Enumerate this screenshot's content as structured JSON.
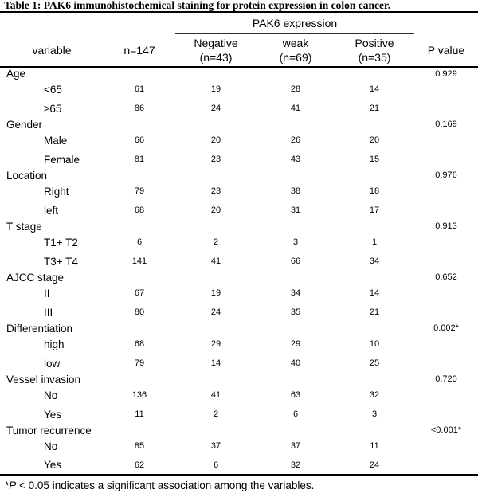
{
  "title": "Table 1: PAK6 immunohistochemical staining for protein expression in colon cancer.",
  "table": {
    "group_header": "PAK6 expression",
    "col_headers": {
      "variable": "variable",
      "n": "n=147",
      "negative_line1": "Negative",
      "negative_line2": "(n=43)",
      "weak_line1": "weak",
      "weak_line2": "(n=69)",
      "positive_line1": "Positive",
      "positive_line2": "(n=35)",
      "p": "P value"
    },
    "sections": [
      {
        "label": "Age",
        "p": "0.929",
        "rows": [
          {
            "label": "<65",
            "n": "61",
            "neg": "19",
            "weak": "28",
            "pos": "14"
          },
          {
            "label": "≥65",
            "n": "86",
            "neg": "24",
            "weak": "41",
            "pos": "21"
          }
        ]
      },
      {
        "label": "Gender",
        "p": "0.169",
        "rows": [
          {
            "label": "Male",
            "n": "66",
            "neg": "20",
            "weak": "26",
            "pos": "20"
          },
          {
            "label": "Female",
            "n": "81",
            "neg": "23",
            "weak": "43",
            "pos": "15"
          }
        ]
      },
      {
        "label": "Location",
        "p": "0.976",
        "rows": [
          {
            "label": "Right",
            "n": "79",
            "neg": "23",
            "weak": "38",
            "pos": "18"
          },
          {
            "label": "left",
            "n": "68",
            "neg": "20",
            "weak": "31",
            "pos": "17"
          }
        ]
      },
      {
        "label": "T stage",
        "p": "0.913",
        "rows": [
          {
            "label": "T1+ T2",
            "n": "6",
            "neg": "2",
            "weak": "3",
            "pos": "1"
          },
          {
            "label": "T3+ T4",
            "n": "141",
            "neg": "41",
            "weak": "66",
            "pos": "34"
          }
        ]
      },
      {
        "label": "AJCC stage",
        "p": "0.652",
        "rows": [
          {
            "label": "II",
            "n": "67",
            "neg": "19",
            "weak": "34",
            "pos": "14"
          },
          {
            "label": "III",
            "n": "80",
            "neg": "24",
            "weak": "35",
            "pos": "21"
          }
        ]
      },
      {
        "label": "Differentiation",
        "p": "0.002*",
        "rows": [
          {
            "label": "high",
            "n": "68",
            "neg": "29",
            "weak": "29",
            "pos": "10"
          },
          {
            "label": "low",
            "n": "79",
            "neg": "14",
            "weak": "40",
            "pos": "25"
          }
        ]
      },
      {
        "label": "Vessel invasion",
        "p": "0.720",
        "rows": [
          {
            "label": "No",
            "n": "136",
            "neg": "41",
            "weak": "63",
            "pos": "32"
          },
          {
            "label": "Yes",
            "n": "11",
            "neg": "2",
            "weak": "6",
            "pos": "3"
          }
        ]
      },
      {
        "label": "Tumor recurrence",
        "p": "<0.001*",
        "rows": [
          {
            "label": "No",
            "n": "85",
            "neg": "37",
            "weak": "37",
            "pos": "11"
          },
          {
            "label": "Yes",
            "n": "62",
            "neg": "6",
            "weak": "32",
            "pos": "24"
          }
        ]
      }
    ]
  },
  "footnote": {
    "star": "*",
    "p_symbol": "P",
    "text": " < 0.05 indicates a significant association among the variables."
  },
  "colors": {
    "background": "#ffffff",
    "text": "#000000",
    "rule": "#000000"
  }
}
